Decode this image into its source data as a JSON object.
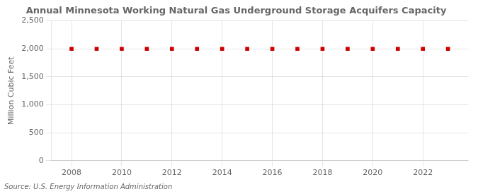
{
  "chart_data": {
    "type": "scatter",
    "title": "Annual Minnesota Working Natural Gas Underground Storage Acquifers Capacity",
    "y_label": "Million Cubic Feet",
    "annotations": [
      "Source: U.S. Energy Information Administration"
    ],
    "x": [
      2008,
      2009,
      2010,
      2011,
      2012,
      2013,
      2014,
      2015,
      2016,
      2017,
      2018,
      2019,
      2020,
      2021,
      2022,
      2023
    ],
    "values": [
      2000,
      2000,
      2000,
      2000,
      2000,
      2000,
      2000,
      2000,
      2000,
      2000,
      2000,
      2000,
      2000,
      2000,
      2000,
      2000
    ],
    "color": "#cc0000",
    "marker": "square",
    "xlim": [
      2007.2,
      2023.8
    ],
    "xticks": [
      2008,
      2010,
      2012,
      2014,
      2016,
      2018,
      2020,
      2022
    ],
    "ylim": [
      0,
      2500
    ],
    "yticks": [
      0,
      500,
      {
        "value": 1000,
        "label": "1,000"
      },
      {
        "value": 1500,
        "label": "1,500"
      },
      {
        "value": 2000,
        "label": "2,000"
      },
      {
        "value": 2500,
        "label": "2,500"
      }
    ],
    "grid": true
  }
}
